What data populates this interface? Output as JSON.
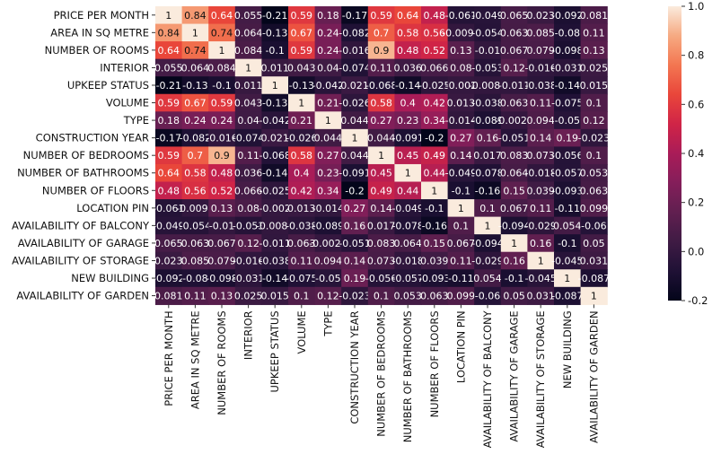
{
  "chart_data": {
    "type": "heatmap",
    "title": "",
    "row_labels": [
      "PRICE PER MONTH",
      "AREA IN SQ METRE",
      "NUMBER OF ROOMS",
      "INTERIOR",
      "UPKEEP STATUS",
      "VOLUME",
      "TYPE",
      "CONSTRUCTION YEAR",
      "NUMBER OF BEDROOMS",
      "NUMBER OF BATHROOMS",
      "NUMBER OF FLOORS",
      "LOCATION PIN",
      "AVAILABILITY OF BALCONY",
      "AVAILABILITY OF GARAGE",
      "AVAILABILITY OF STORAGE",
      "NEW BUILDING",
      "AVAILABILITY OF GARDEN"
    ],
    "col_labels": [
      "PRICE PER MONTH",
      "AREA IN SQ METRE",
      "NUMBER OF ROOMS",
      "INTERIOR",
      "UPKEEP STATUS",
      "VOLUME",
      "TYPE",
      "CONSTRUCTION YEAR",
      "NUMBER OF BEDROOMS",
      "NUMBER OF BATHROOMS",
      "NUMBER OF FLOORS",
      "LOCATION PIN",
      "AVAILABILITY OF BALCONY",
      "AVAILABILITY OF GARAGE",
      "AVAILABILITY OF STORAGE",
      "NEW BUILDING",
      "AVAILABILITY OF GARDEN"
    ],
    "values": [
      [
        1,
        0.84,
        0.64,
        0.055,
        -0.21,
        0.59,
        0.18,
        -0.17,
        0.59,
        0.64,
        0.48,
        -0.061,
        -0.049,
        0.065,
        0.023,
        -0.092,
        0.081
      ],
      [
        0.84,
        1,
        0.74,
        0.064,
        -0.13,
        0.67,
        0.24,
        -0.082,
        0.7,
        0.58,
        0.56,
        -0.0098,
        -0.054,
        0.063,
        0.085,
        -0.08,
        0.11
      ],
      [
        0.64,
        0.74,
        1,
        0.084,
        -0.1,
        0.59,
        0.24,
        -0.016,
        0.9,
        0.48,
        0.52,
        0.13,
        -0.01,
        0.067,
        0.079,
        -0.098,
        0.13
      ],
      [
        0.055,
        0.064,
        0.084,
        1,
        0.011,
        0.043,
        0.04,
        -0.074,
        0.11,
        0.036,
        0.066,
        0.08,
        -0.053,
        0.12,
        -0.016,
        -0.031,
        0.025
      ],
      [
        -0.21,
        -0.13,
        -0.1,
        0.011,
        1,
        -0.13,
        -0.042,
        0.021,
        -0.068,
        -0.14,
        -0.025,
        -0.002,
        -0.0088,
        -0.011,
        -0.038,
        -0.14,
        0.015
      ],
      [
        0.59,
        0.67,
        0.59,
        0.043,
        -0.13,
        1,
        0.21,
        -0.026,
        0.58,
        0.4,
        0.42,
        0.013,
        -0.038,
        0.063,
        0.11,
        -0.075,
        0.1
      ],
      [
        0.18,
        0.24,
        0.24,
        0.04,
        -0.042,
        0.21,
        1,
        0.044,
        0.27,
        0.23,
        0.34,
        -0.014,
        -0.089,
        -0.0027,
        0.094,
        -0.05,
        0.12
      ],
      [
        -0.17,
        -0.082,
        -0.016,
        -0.074,
        0.021,
        -0.026,
        0.044,
        1,
        0.044,
        -0.091,
        -0.2,
        0.27,
        0.16,
        -0.051,
        0.14,
        0.19,
        -0.023
      ],
      [
        0.59,
        0.7,
        0.9,
        0.11,
        -0.068,
        0.58,
        0.27,
        0.044,
        1,
        0.45,
        0.49,
        0.14,
        0.017,
        0.083,
        0.073,
        -0.056,
        0.1
      ],
      [
        0.64,
        0.58,
        0.48,
        0.036,
        -0.14,
        0.4,
        0.23,
        -0.091,
        0.45,
        1,
        0.44,
        -0.049,
        -0.078,
        0.064,
        -0.018,
        -0.057,
        0.053
      ],
      [
        0.48,
        0.56,
        0.52,
        0.066,
        -0.025,
        0.42,
        0.34,
        -0.2,
        0.49,
        0.44,
        1,
        -0.1,
        -0.16,
        0.15,
        0.039,
        -0.093,
        0.063
      ],
      [
        -0.061,
        -0.0098,
        0.13,
        0.08,
        -0.002,
        0.013,
        -0.014,
        0.27,
        0.14,
        -0.049,
        -0.1,
        1,
        0.1,
        0.067,
        0.11,
        -0.11,
        0.099
      ],
      [
        -0.049,
        -0.054,
        -0.01,
        -0.053,
        -0.0088,
        -0.038,
        -0.089,
        0.16,
        0.017,
        -0.078,
        -0.16,
        0.1,
        1,
        -0.094,
        -0.029,
        0.054,
        -0.06
      ],
      [
        0.065,
        0.063,
        0.067,
        0.12,
        -0.011,
        0.063,
        -0.0027,
        -0.051,
        0.083,
        0.064,
        0.15,
        0.067,
        -0.094,
        1,
        0.16,
        -0.1,
        0.05
      ],
      [
        0.023,
        0.085,
        0.079,
        -0.016,
        -0.038,
        0.11,
        0.094,
        0.14,
        0.073,
        -0.018,
        0.039,
        0.11,
        -0.029,
        0.16,
        1,
        -0.045,
        0.031
      ],
      [
        -0.092,
        -0.08,
        -0.098,
        -0.031,
        -0.14,
        -0.075,
        -0.05,
        0.19,
        -0.056,
        -0.057,
        -0.093,
        -0.11,
        0.054,
        -0.1,
        -0.045,
        1,
        -0.087
      ],
      [
        0.081,
        0.11,
        0.13,
        0.025,
        0.015,
        0.1,
        0.12,
        -0.023,
        0.1,
        0.053,
        0.063,
        0.099,
        -0.06,
        0.05,
        0.031,
        -0.087,
        1
      ]
    ],
    "cell_text": [
      [
        "1",
        "0.84",
        "0.64",
        "0.055",
        "-0.21",
        "0.59",
        "0.18",
        "-0.17",
        "0.59",
        "0.64",
        "0.48",
        "-0.061",
        "-0.049",
        "0.065",
        "0.023",
        "-0.092",
        "0.081"
      ],
      [
        "0.84",
        "1",
        "0.74",
        "0.064",
        "-0.13",
        "0.67",
        "0.24",
        "-0.082",
        "0.7",
        "0.58",
        "0.56",
        "-0.0098",
        "-0.054",
        "0.063",
        "0.085",
        "-0.08",
        "0.11"
      ],
      [
        "0.64",
        "0.74",
        "1",
        "0.084",
        "-0.1",
        "0.59",
        "0.24",
        "-0.016",
        "0.9",
        "0.48",
        "0.52",
        "0.13",
        "-0.01",
        "0.067",
        "0.079",
        "-0.098",
        "0.13"
      ],
      [
        "0.055",
        "0.064",
        "0.084",
        "1",
        "0.011",
        "0.043",
        "0.04",
        "-0.074",
        "0.11",
        "0.036",
        "0.066",
        "0.08",
        "-0.053",
        "0.12",
        "-0.016",
        "-0.031",
        "0.025"
      ],
      [
        "-0.21",
        "-0.13",
        "-0.1",
        "0.011",
        "1",
        "-0.13",
        "-0.042",
        "0.021",
        "-0.068",
        "-0.14",
        "-0.025",
        "-0.002",
        "-0.0088",
        "-0.011",
        "-0.038",
        "-0.14",
        "0.015"
      ],
      [
        "0.59",
        "0.67",
        "0.59",
        "0.043",
        "-0.13",
        "1",
        "0.21",
        "-0.026",
        "0.58",
        "0.4",
        "0.42",
        "0.013",
        "-0.038",
        "0.063",
        "0.11",
        "-0.075",
        "0.1"
      ],
      [
        "0.18",
        "0.24",
        "0.24",
        "0.04",
        "-0.042",
        "0.21",
        "1",
        "0.044",
        "0.27",
        "0.23",
        "0.34",
        "-0.014",
        "-0.089",
        "-0.0027",
        "0.094",
        "-0.05",
        "0.12"
      ],
      [
        "-0.17",
        "-0.082",
        "-0.016",
        "-0.074",
        "0.021",
        "-0.026",
        "0.044",
        "1",
        "0.044",
        "-0.091",
        "-0.2",
        "0.27",
        "0.16",
        "-0.051",
        "0.14",
        "0.19",
        "-0.023"
      ],
      [
        "0.59",
        "0.7",
        "0.9",
        "0.11",
        "-0.068",
        "0.58",
        "0.27",
        "0.044",
        "1",
        "0.45",
        "0.49",
        "0.14",
        "0.017",
        "0.083",
        "0.073",
        "-0.056",
        "0.1"
      ],
      [
        "0.64",
        "0.58",
        "0.48",
        "0.036",
        "-0.14",
        "0.4",
        "0.23",
        "-0.091",
        "0.45",
        "1",
        "0.44",
        "-0.049",
        "-0.078",
        "0.064",
        "-0.018",
        "-0.057",
        "0.053"
      ],
      [
        "0.48",
        "0.56",
        "0.52",
        "0.066",
        "-0.025",
        "0.42",
        "0.34",
        "-0.2",
        "0.49",
        "0.44",
        "1",
        "-0.1",
        "-0.16",
        "0.15",
        "0.039",
        "-0.093",
        "0.063"
      ],
      [
        "-0.061",
        "-0.0098",
        "0.13",
        "0.08",
        "-0.002",
        "0.013",
        "-0.014",
        "0.27",
        "0.14",
        "-0.049",
        "-0.1",
        "1",
        "0.1",
        "0.067",
        "0.11",
        "-0.11",
        "0.099"
      ],
      [
        "-0.049",
        "-0.054",
        "-0.01",
        "-0.053",
        "-0.0088",
        "-0.038",
        "-0.089",
        "0.16",
        "0.017",
        "-0.078",
        "-0.16",
        "0.1",
        "1",
        "-0.094",
        "-0.029",
        "0.054",
        "-0.06"
      ],
      [
        "0.065",
        "0.063",
        "0.067",
        "0.12",
        "-0.011",
        "0.063",
        "-0.0027",
        "-0.051",
        "0.083",
        "0.064",
        "0.15",
        "0.067",
        "-0.094",
        "1",
        "0.16",
        "-0.1",
        "0.05"
      ],
      [
        "0.023",
        "0.085",
        "0.079",
        "-0.016",
        "-0.038",
        "0.11",
        "0.094",
        "0.14",
        "0.073",
        "-0.018",
        "0.039",
        "0.11",
        "-0.029",
        "0.16",
        "1",
        "-0.045",
        "0.031"
      ],
      [
        "-0.092",
        "-0.08",
        "-0.098",
        "-0.031",
        "-0.14",
        "-0.075",
        "-0.05",
        "0.19",
        "-0.056",
        "-0.057",
        "-0.093",
        "-0.11",
        "0.054",
        "-0.1",
        "-0.045",
        "1",
        "-0.087"
      ],
      [
        "0.081",
        "0.11",
        "0.13",
        "0.025",
        "0.015",
        "0.1",
        "0.12",
        "-0.023",
        "0.1",
        "0.053",
        "0.063",
        "0.099",
        "-0.06",
        "0.05",
        "0.031",
        "-0.087",
        "1"
      ]
    ],
    "colorbar": {
      "vmin": -0.2,
      "vmax": 1.0,
      "ticks": [
        -0.2,
        0.0,
        0.2,
        0.4,
        0.6,
        0.8,
        1.0
      ],
      "tick_labels": [
        "-0.2",
        "0.0",
        "0.2",
        "0.4",
        "0.6",
        "0.8",
        "1.0"
      ]
    },
    "colormap": "rocket",
    "annotated": true,
    "legend": "colorbar-right"
  }
}
